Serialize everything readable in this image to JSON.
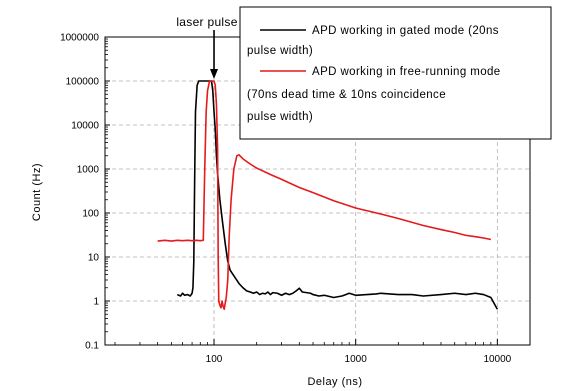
{
  "chart_data": {
    "type": "line",
    "xlabel": "Delay (ns)",
    "ylabel": "Count (Hz)",
    "xscale": "log",
    "yscale": "log",
    "xlim": [
      17,
      17000
    ],
    "ylim": [
      0.1,
      1000000
    ],
    "grid": true,
    "legend_position": "top-right",
    "x_tick_labels": [
      "100",
      "1000",
      "10000"
    ],
    "x_tick_values": [
      100,
      1000,
      10000
    ],
    "y_tick_labels": [
      "0.1",
      "1",
      "10",
      "100",
      "1000",
      "10000",
      "100000",
      "1000000"
    ],
    "y_tick_values": [
      0.1,
      1,
      10,
      100,
      1000,
      10000,
      100000,
      1000000
    ],
    "annotation": {
      "text": "laser pulse",
      "x": 100,
      "y": 100000
    },
    "series": [
      {
        "name_lines": [
          "APD working in gated mode (20ns",
          "pulse width)"
        ],
        "color": "#000000",
        "points": [
          [
            55,
            1.4
          ],
          [
            58,
            1.3
          ],
          [
            60,
            1.5
          ],
          [
            62,
            1.35
          ],
          [
            65,
            1.4
          ],
          [
            68,
            1.3
          ],
          [
            70,
            1.5
          ],
          [
            71,
            2
          ],
          [
            72,
            8
          ],
          [
            73,
            600
          ],
          [
            74,
            20000
          ],
          [
            76,
            80000
          ],
          [
            78,
            100000
          ],
          [
            85,
            100000
          ],
          [
            92,
            100000
          ],
          [
            96,
            100000
          ],
          [
            98,
            60000
          ],
          [
            100,
            20000
          ],
          [
            102,
            8000
          ],
          [
            104,
            2000
          ],
          [
            106,
            800
          ],
          [
            110,
            200
          ],
          [
            115,
            60
          ],
          [
            120,
            20
          ],
          [
            125,
            8
          ],
          [
            130,
            5
          ],
          [
            140,
            3.5
          ],
          [
            150,
            2.5
          ],
          [
            160,
            2
          ],
          [
            170,
            1.7
          ],
          [
            180,
            1.6
          ],
          [
            190,
            1.5
          ],
          [
            200,
            1.6
          ],
          [
            210,
            1.4
          ],
          [
            220,
            1.5
          ],
          [
            230,
            1.45
          ],
          [
            240,
            1.6
          ],
          [
            250,
            1.4
          ],
          [
            260,
            1.55
          ],
          [
            280,
            1.5
          ],
          [
            300,
            1.35
          ],
          [
            320,
            1.5
          ],
          [
            340,
            1.4
          ],
          [
            360,
            1.5
          ],
          [
            380,
            1.7
          ],
          [
            400,
            1.95
          ],
          [
            420,
            1.6
          ],
          [
            450,
            1.55
          ],
          [
            480,
            1.5
          ],
          [
            500,
            1.4
          ],
          [
            550,
            1.3
          ],
          [
            600,
            1.35
          ],
          [
            700,
            1.2
          ],
          [
            800,
            1.3
          ],
          [
            850,
            1.4
          ],
          [
            900,
            1.5
          ],
          [
            1000,
            1.35
          ],
          [
            1200,
            1.4
          ],
          [
            1400,
            1.45
          ],
          [
            1500,
            1.5
          ],
          [
            2000,
            1.4
          ],
          [
            2500,
            1.4
          ],
          [
            3000,
            1.3
          ],
          [
            4000,
            1.4
          ],
          [
            5000,
            1.5
          ],
          [
            6000,
            1.4
          ],
          [
            7000,
            1.5
          ],
          [
            8000,
            1.4
          ],
          [
            9000,
            1.2
          ],
          [
            10000,
            0.65
          ]
        ]
      },
      {
        "name_lines": [
          "APD working in free-running mode",
          "(70ns dead time & 10ns coincidence",
          "pulse width)"
        ],
        "color": "#e41a1c",
        "points": [
          [
            40,
            23
          ],
          [
            45,
            24
          ],
          [
            50,
            23
          ],
          [
            55,
            24
          ],
          [
            60,
            23.5
          ],
          [
            65,
            24
          ],
          [
            70,
            23.5
          ],
          [
            75,
            24
          ],
          [
            80,
            23.5
          ],
          [
            84,
            24
          ],
          [
            86,
            1000
          ],
          [
            88,
            20000
          ],
          [
            90,
            60000
          ],
          [
            93,
            100000
          ],
          [
            97,
            100000
          ],
          [
            100,
            100000
          ],
          [
            102,
            80000
          ],
          [
            104,
            30000
          ],
          [
            106,
            3000
          ],
          [
            107,
            10
          ],
          [
            108,
            1
          ],
          [
            110,
            0.8
          ],
          [
            112,
            0.7
          ],
          [
            114,
            1
          ],
          [
            116,
            0.75
          ],
          [
            118,
            0.65
          ],
          [
            120,
            0.9
          ],
          [
            122,
            1.2
          ],
          [
            125,
            3
          ],
          [
            128,
            30
          ],
          [
            132,
            200
          ],
          [
            138,
            1000
          ],
          [
            145,
            2000
          ],
          [
            150,
            2100
          ],
          [
            160,
            1700
          ],
          [
            180,
            1300
          ],
          [
            200,
            1050
          ],
          [
            250,
            750
          ],
          [
            300,
            580
          ],
          [
            400,
            380
          ],
          [
            500,
            290
          ],
          [
            700,
            190
          ],
          [
            1000,
            130
          ],
          [
            1500,
            95
          ],
          [
            2000,
            75
          ],
          [
            3000,
            52
          ],
          [
            4000,
            42
          ],
          [
            5000,
            36
          ],
          [
            6000,
            31
          ],
          [
            7000,
            29
          ],
          [
            8000,
            27
          ],
          [
            9000,
            25
          ]
        ]
      }
    ]
  }
}
